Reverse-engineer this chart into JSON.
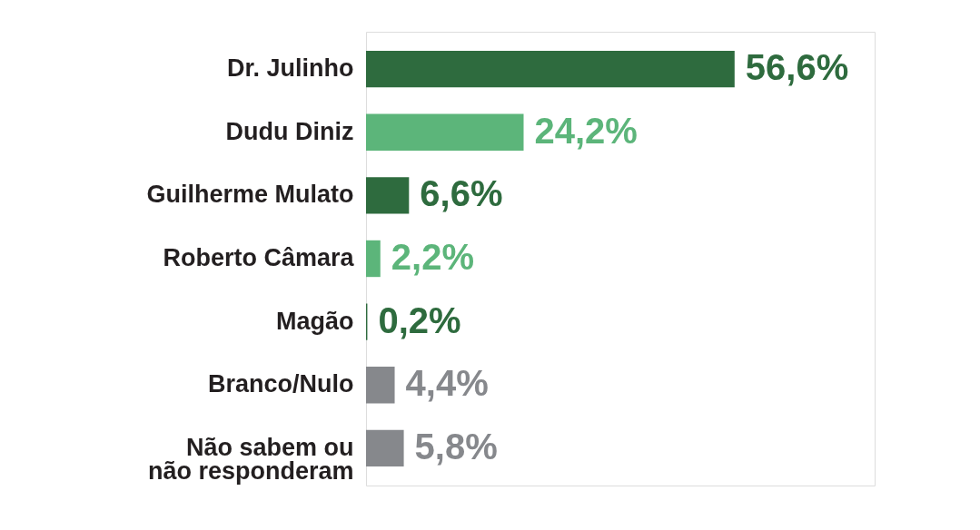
{
  "chart_data": {
    "type": "bar",
    "orientation": "horizontal",
    "categories": [
      "Dr. Julinho",
      "Dudu Diniz",
      "Guilherme Mulato",
      "Roberto Câmara",
      "Magão",
      "Branco/Nulo",
      "Não sabem ou\nnão responderam"
    ],
    "values": [
      56.6,
      24.2,
      6.6,
      2.2,
      0.2,
      4.4,
      5.8
    ],
    "colors": [
      "#2e6b3e",
      "#5cb57a",
      "#2e6b3e",
      "#5cb57a",
      "#2e6b3e",
      "#86888c",
      "#86888c"
    ],
    "value_labels": [
      "56,6%",
      "24,2%",
      "6,6%",
      "2,2%",
      "0,2%",
      "4,4%",
      "5,8%"
    ],
    "tick_labels": "y"
  }
}
